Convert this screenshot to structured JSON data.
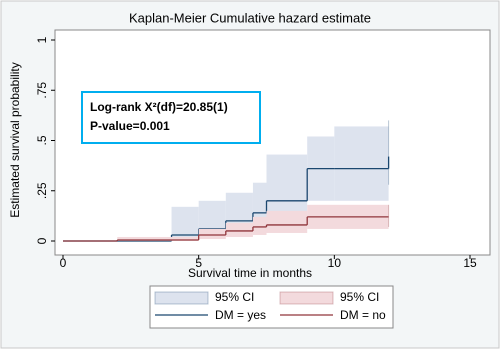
{
  "chart_data": {
    "type": "step",
    "title": "Kaplan-Meier Cumulative hazard estimate",
    "x_label": "Survival time in months",
    "y_label": "Estimated survival probability",
    "annotations": [
      "Log-rank X²(df)=20.85(1)",
      "P-value=0.001"
    ],
    "xlim": [
      0,
      15
    ],
    "ylim": [
      0,
      1
    ],
    "xticks": [
      0,
      5,
      10,
      15
    ],
    "yticks": [
      0,
      {
        "value": 0.25,
        "label": ".25"
      },
      {
        "value": 0.5,
        "label": ".5"
      },
      {
        "value": 0.75,
        "label": ".75"
      },
      1
    ],
    "grid": false,
    "series": [
      {
        "name": "DM = yes",
        "ci_name": "95% CI",
        "color": "#1a476f",
        "ci_color": "#dde3ee",
        "x": [
          0,
          4,
          5,
          6,
          7,
          7.5,
          9,
          10,
          12
        ],
        "values": [
          0,
          0.03,
          0.06,
          0.1,
          0.14,
          0.2,
          0.36,
          0.36,
          0.42
        ],
        "lower": [
          0,
          0.01,
          0.02,
          0.04,
          0.07,
          0.1,
          0.2,
          0.2,
          0.28
        ],
        "upper": [
          0,
          0.17,
          0.2,
          0.24,
          0.29,
          0.43,
          0.52,
          0.57,
          0.6
        ]
      },
      {
        "name": "DM = no",
        "ci_name": "95% CI",
        "color": "#90353b",
        "ci_color": "#f3dadd",
        "x": [
          0,
          2,
          5,
          6,
          7,
          7.5,
          9,
          12
        ],
        "values": [
          0,
          0.005,
          0.03,
          0.05,
          0.07,
          0.08,
          0.12,
          0.12
        ],
        "lower": [
          0,
          0.001,
          0.01,
          0.02,
          0.03,
          0.04,
          0.06,
          0.07
        ],
        "upper": [
          0,
          0.02,
          0.06,
          0.09,
          0.12,
          0.15,
          0.18,
          0.18
        ]
      }
    ]
  }
}
